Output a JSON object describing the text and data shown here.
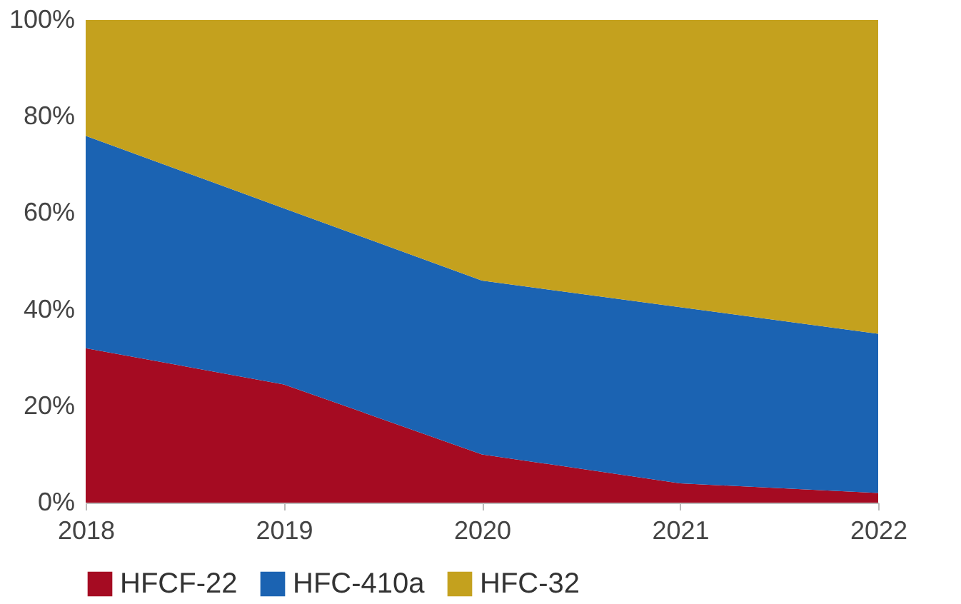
{
  "chart_data": {
    "type": "area",
    "stacked": true,
    "categories": [
      "2018",
      "2019",
      "2020",
      "2021",
      "2022"
    ],
    "series": [
      {
        "name": "HFCF-22",
        "color": "#a50b22",
        "values": [
          32,
          24.5,
          10,
          4,
          2
        ]
      },
      {
        "name": "HFC-410a",
        "color": "#1b63b2",
        "values": [
          44,
          36.5,
          36,
          36.5,
          33
        ]
      },
      {
        "name": "HFC-32",
        "color": "#c4a11e",
        "values": [
          24,
          39,
          54,
          59.5,
          65
        ]
      }
    ],
    "ylim": [
      0,
      100
    ],
    "yticks": [
      {
        "value": 0,
        "label": "0%"
      },
      {
        "value": 20,
        "label": "20%"
      },
      {
        "value": 40,
        "label": "40%"
      },
      {
        "value": 60,
        "label": "60%"
      },
      {
        "value": 80,
        "label": "80%"
      },
      {
        "value": 100,
        "label": "100%"
      }
    ],
    "grid": false,
    "legend": "bottom"
  }
}
